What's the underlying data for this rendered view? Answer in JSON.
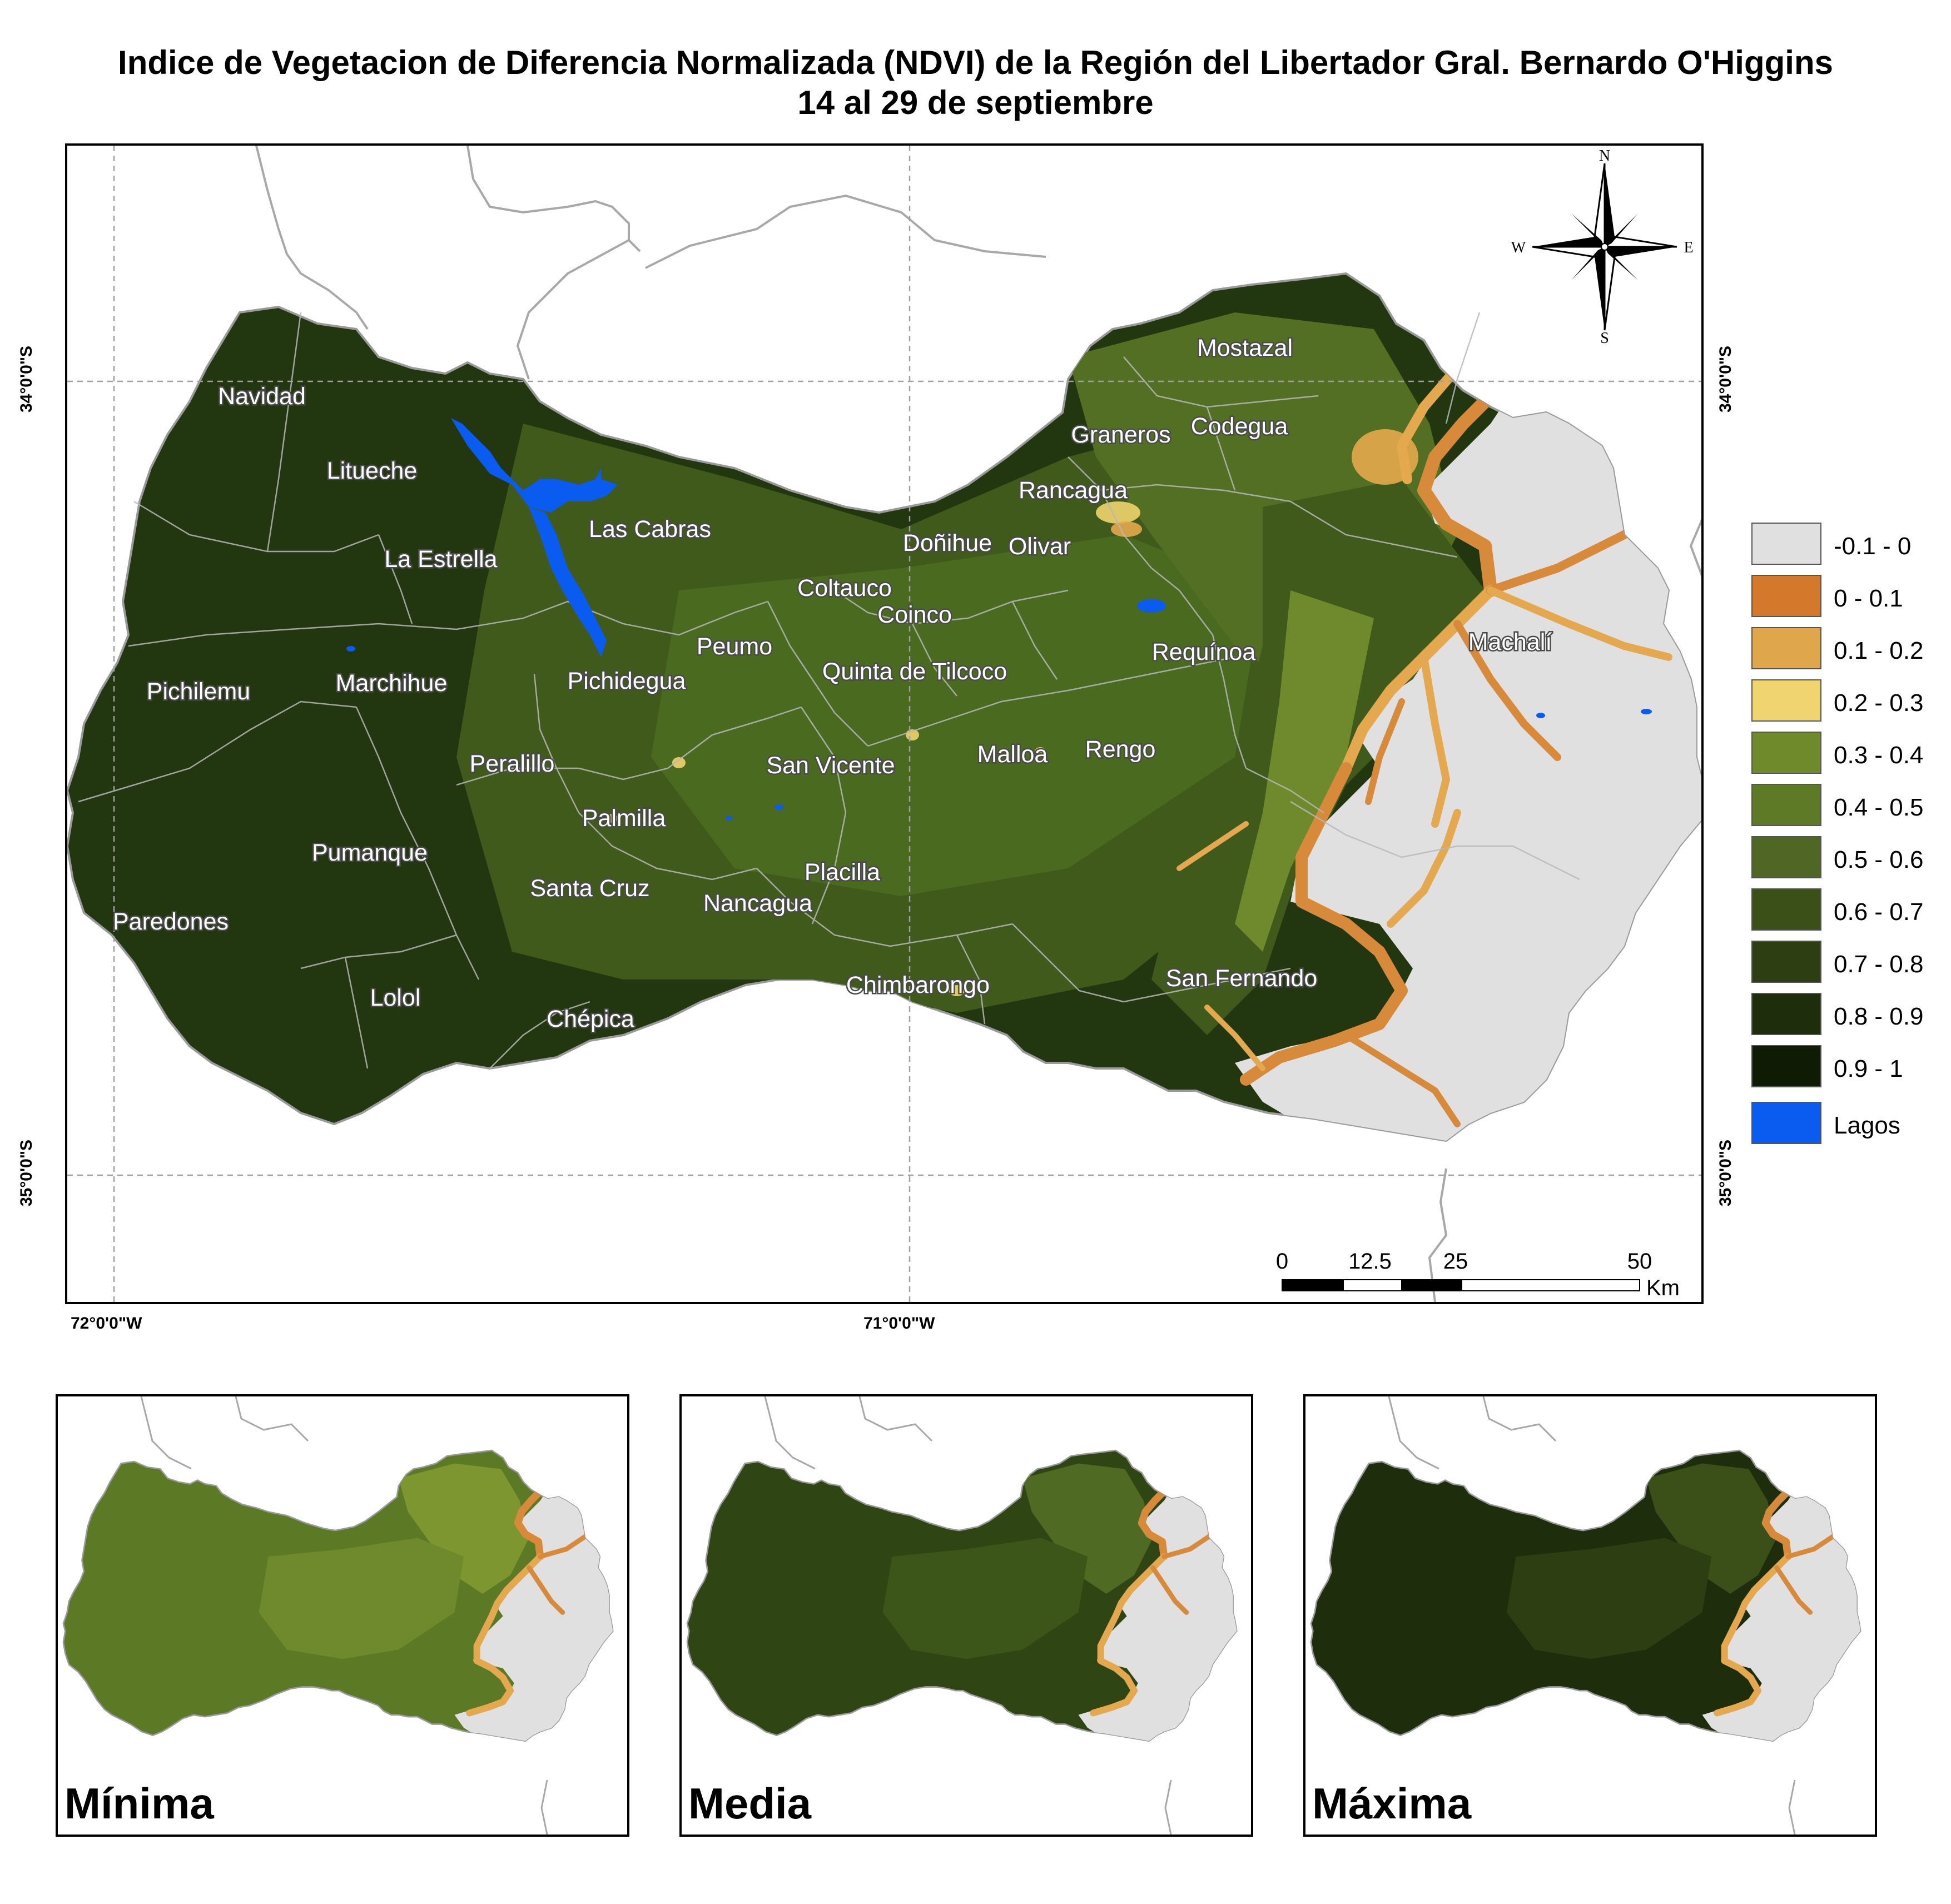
{
  "title": {
    "line1": "Indice de Vegetacion de Diferencia Normalizada (NDVI) de la Región del Libertador Gral. Bernardo O'Higgins",
    "line2": "14 al 29 de septiembre"
  },
  "coordinates": {
    "lat_top": "34°0'0\"S",
    "lat_bottom": "35°0'0\"S",
    "lon_left": "72°0'0\"W",
    "lon_right": "71°0'0\"W"
  },
  "north_arrow": {
    "n": "N",
    "s": "S",
    "e": "E",
    "w": "W"
  },
  "scale_bar": {
    "labels": [
      "0",
      "12.5",
      "25",
      "50"
    ],
    "unit": "Km"
  },
  "colors": {
    "c1": "#e0e0e0",
    "c2": "#d68a3a",
    "c3": "#e4a84e",
    "c4": "#f0d46e",
    "c5": "#6f8a2c",
    "c6": "#5e7a26",
    "c7": "#4f6a22",
    "c8": "#3c561a",
    "c9": "#2f4614",
    "c10": "#22380f",
    "c11": "#142509",
    "lake": "#0a5cf0"
  },
  "legend": [
    {
      "label": "-0.1 - 0",
      "color": "#e0e0e0"
    },
    {
      "label": "0 - 0.1",
      "color": "#d4792c"
    },
    {
      "label": "0.1 - 0.2",
      "color": "#e0a64c"
    },
    {
      "label": "0.2 - 0.3",
      "color": "#f0d470"
    },
    {
      "label": "0.3 - 0.4",
      "color": "#6e8a2a"
    },
    {
      "label": "0.4 - 0.5",
      "color": "#5f7a26"
    },
    {
      "label": "0.5 - 0.6",
      "color": "#4f6624"
    },
    {
      "label": "0.6 - 0.7",
      "color": "#3b5019"
    },
    {
      "label": "0.7 - 0.8",
      "color": "#2c3e12"
    },
    {
      "label": "0.8 - 0.9",
      "color": "#1e2e0c"
    },
    {
      "label": "0.9 - 1",
      "color": "#101b06"
    },
    {
      "label": "Lagos",
      "color": "#0a5cf0"
    }
  ],
  "communes": [
    {
      "name": "Navidad"
    },
    {
      "name": "Litueche"
    },
    {
      "name": "La Estrella"
    },
    {
      "name": "Las Cabras"
    },
    {
      "name": "Pichilemu"
    },
    {
      "name": "Marchihue"
    },
    {
      "name": "Pichidegua"
    },
    {
      "name": "Peumo"
    },
    {
      "name": "Coltauco"
    },
    {
      "name": "Coinco"
    },
    {
      "name": "Doñihue"
    },
    {
      "name": "Olivar"
    },
    {
      "name": "Rancagua"
    },
    {
      "name": "Graneros"
    },
    {
      "name": "Codegua"
    },
    {
      "name": "Mostazal"
    },
    {
      "name": "Machalí"
    },
    {
      "name": "Requínoa"
    },
    {
      "name": "Quinta de Tilcoco"
    },
    {
      "name": "Malloa"
    },
    {
      "name": "Rengo"
    },
    {
      "name": "San Vicente"
    },
    {
      "name": "Peralillo"
    },
    {
      "name": "Palmilla"
    },
    {
      "name": "Pumanque"
    },
    {
      "name": "Paredones"
    },
    {
      "name": "Santa Cruz"
    },
    {
      "name": "Nancagua"
    },
    {
      "name": "Placilla"
    },
    {
      "name": "Chimbarongo"
    },
    {
      "name": "San Fernando"
    },
    {
      "name": "Lolol"
    },
    {
      "name": "Chépica"
    }
  ],
  "insets": [
    {
      "label": "Mínima"
    },
    {
      "label": "Media"
    },
    {
      "label": "Máxima"
    }
  ]
}
